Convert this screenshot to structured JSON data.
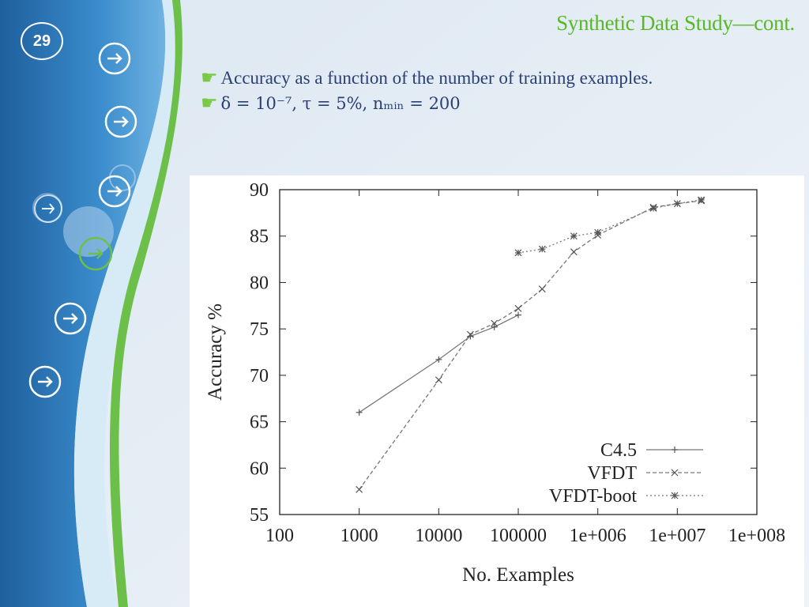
{
  "slide": {
    "number": "29",
    "title": "Synthetic Data Study—cont.",
    "bullets": [
      "Accuracy as a function of the number of training examples.",
      "δ = 10⁻⁷, τ = 5%, nₘᵢₙ = 200"
    ],
    "bullet_icon": "pointing-hand-icon",
    "nav_icon": "arrow-right-circle-icon"
  },
  "colors": {
    "accent_green": "#58b82a",
    "text_blue": "#2a3f73",
    "sidebar_blue": "#2e79b8"
  },
  "chart_data": {
    "type": "line",
    "title": "",
    "xlabel": "No. Examples",
    "ylabel": "Accuracy %",
    "xscale": "log",
    "xlim": [
      100,
      100000000
    ],
    "ylim": [
      55,
      90
    ],
    "xticks": [
      "100",
      "1000",
      "10000",
      "100000",
      "1e+006",
      "1e+007",
      "1e+008"
    ],
    "yticks": [
      "55",
      "60",
      "65",
      "70",
      "75",
      "80",
      "85",
      "90"
    ],
    "legend_position": "bottom-right",
    "grid": false,
    "series": [
      {
        "name": "C4.5",
        "marker": "+",
        "dash": "solid",
        "x": [
          1000,
          10000,
          25000,
          50000,
          100000
        ],
        "y": [
          66.0,
          71.7,
          74.2,
          75.2,
          76.5
        ]
      },
      {
        "name": "VFDT",
        "marker": "x",
        "dash": "dashed",
        "x": [
          1000,
          10000,
          25000,
          50000,
          100000,
          200000,
          500000,
          1000000,
          5000000,
          10000000,
          20000000
        ],
        "y": [
          57.7,
          69.5,
          74.4,
          75.6,
          77.2,
          79.3,
          83.3,
          85.1,
          88.1,
          88.5,
          88.8
        ]
      },
      {
        "name": "VFDT-boot",
        "marker": "*",
        "dash": "dotted",
        "x": [
          100000,
          200000,
          500000,
          1000000,
          5000000,
          10000000,
          20000000
        ],
        "y": [
          83.2,
          83.6,
          85.0,
          85.4,
          88.0,
          88.5,
          88.9
        ]
      }
    ]
  }
}
